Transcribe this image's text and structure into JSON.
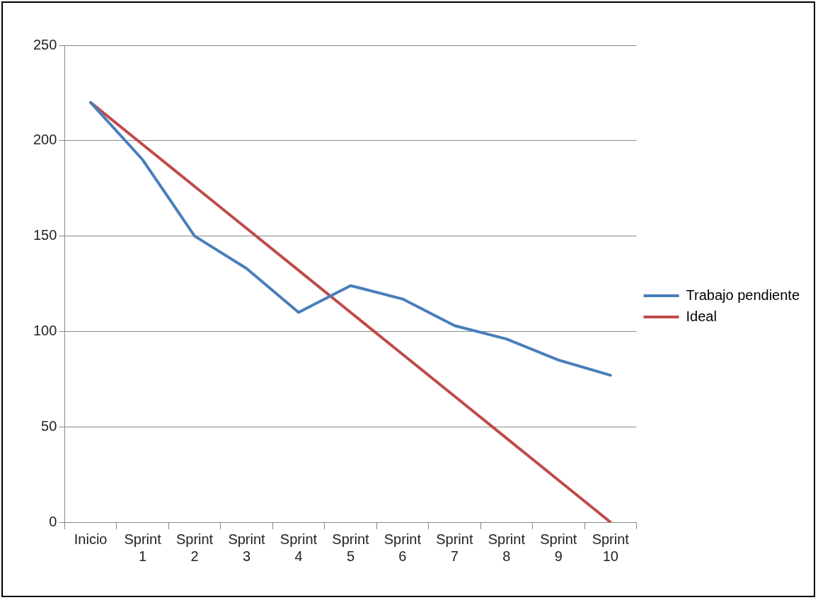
{
  "chart_data": {
    "type": "line",
    "categories": [
      "Inicio",
      "Sprint 1",
      "Sprint 2",
      "Sprint 3",
      "Sprint 4",
      "Sprint 5",
      "Sprint 6",
      "Sprint 7",
      "Sprint 8",
      "Sprint 9",
      "Sprint 10"
    ],
    "series": [
      {
        "name": "Trabajo pendiente",
        "color": "#4a7ebb",
        "values": [
          220,
          190,
          150,
          133,
          110,
          124,
          117,
          103,
          96,
          85,
          77
        ]
      },
      {
        "name": "Ideal",
        "color": "#be4b48",
        "values": [
          220,
          198,
          176,
          154,
          132,
          110,
          88,
          66,
          44,
          22,
          0
        ]
      }
    ],
    "ylim": [
      0,
      250
    ],
    "yticks": [
      0,
      50,
      100,
      150,
      200,
      250
    ],
    "grid": "y",
    "legend": "right",
    "marker": "none",
    "line_style": "solid"
  }
}
